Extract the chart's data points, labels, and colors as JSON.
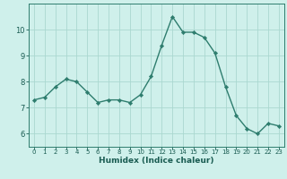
{
  "x": [
    0,
    1,
    2,
    3,
    4,
    5,
    6,
    7,
    8,
    9,
    10,
    11,
    12,
    13,
    14,
    15,
    16,
    17,
    18,
    19,
    20,
    21,
    22,
    23
  ],
  "y": [
    7.3,
    7.4,
    7.8,
    8.1,
    8.0,
    7.6,
    7.2,
    7.3,
    7.3,
    7.2,
    7.5,
    8.2,
    9.4,
    10.5,
    9.9,
    9.9,
    9.7,
    9.1,
    7.8,
    6.7,
    6.2,
    6.0,
    6.4,
    6.3
  ],
  "line_color": "#2e7d6e",
  "marker": "D",
  "marker_size": 2.2,
  "bg_color": "#cff0eb",
  "grid_color": "#aad8d0",
  "xlabel": "Humidex (Indice chaleur)",
  "xlim": [
    -0.5,
    23.5
  ],
  "ylim": [
    5.5,
    11.0
  ],
  "yticks": [
    6,
    7,
    8,
    9,
    10
  ],
  "xticks": [
    0,
    1,
    2,
    3,
    4,
    5,
    6,
    7,
    8,
    9,
    10,
    11,
    12,
    13,
    14,
    15,
    16,
    17,
    18,
    19,
    20,
    21,
    22,
    23
  ],
  "axis_color": "#2e7d6e",
  "tick_color": "#1a5c52",
  "font_color": "#1a5c52",
  "xlabel_fontsize": 6.5,
  "xtick_fontsize": 5.0,
  "ytick_fontsize": 6.0
}
